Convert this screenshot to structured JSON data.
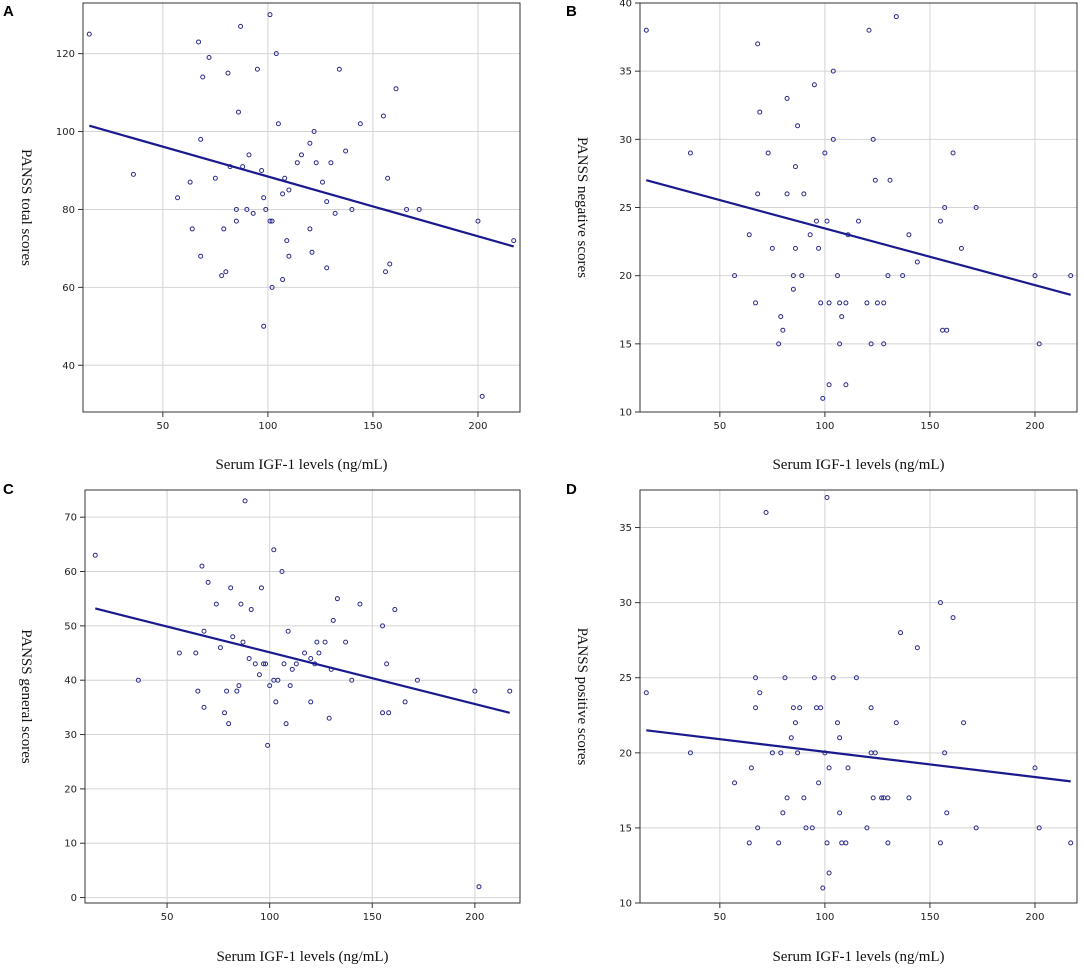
{
  "colors": {
    "points": "#2b2b8c",
    "fit_line": "#1a1a8e",
    "grid": "#d4d4d4",
    "frame": "#333333"
  },
  "chart_data": [
    {
      "panel": "A",
      "type": "scatter",
      "xlabel": "Serum IGF-1 levels (ng/mL)",
      "ylabel": "PANSS total scores",
      "xlim": [
        12,
        220
      ],
      "ylim": [
        28,
        133
      ],
      "xticks": [
        50,
        100,
        150,
        200
      ],
      "yticks": [
        40,
        60,
        80,
        100,
        120
      ],
      "grid": true,
      "fit_line": [
        [
          15,
          101.5
        ],
        [
          217,
          70.5
        ]
      ],
      "points": [
        [
          15,
          125
        ],
        [
          36,
          89
        ],
        [
          57,
          83
        ],
        [
          63,
          87
        ],
        [
          64,
          75
        ],
        [
          67,
          123
        ],
        [
          68,
          98
        ],
        [
          68,
          68
        ],
        [
          69,
          114
        ],
        [
          72,
          119
        ],
        [
          75,
          88
        ],
        [
          78,
          63
        ],
        [
          79,
          75
        ],
        [
          80,
          64
        ],
        [
          81,
          115
        ],
        [
          82,
          91
        ],
        [
          85,
          80
        ],
        [
          85,
          77
        ],
        [
          86,
          105
        ],
        [
          87,
          127
        ],
        [
          88,
          91
        ],
        [
          90,
          80
        ],
        [
          91,
          94
        ],
        [
          93,
          79
        ],
        [
          95,
          116
        ],
        [
          97,
          90
        ],
        [
          98,
          83
        ],
        [
          98,
          50
        ],
        [
          99,
          80
        ],
        [
          101,
          130
        ],
        [
          101,
          77
        ],
        [
          102,
          60
        ],
        [
          102,
          77
        ],
        [
          104,
          120
        ],
        [
          105,
          102
        ],
        [
          107,
          62
        ],
        [
          107,
          84
        ],
        [
          108,
          88
        ],
        [
          109,
          72
        ],
        [
          110,
          85
        ],
        [
          110,
          68
        ],
        [
          114,
          92
        ],
        [
          116,
          94
        ],
        [
          120,
          75
        ],
        [
          120,
          97
        ],
        [
          121,
          69
        ],
        [
          122,
          100
        ],
        [
          123,
          92
        ],
        [
          126,
          87
        ],
        [
          128,
          82
        ],
        [
          128,
          65
        ],
        [
          130,
          92
        ],
        [
          132,
          79
        ],
        [
          134,
          116
        ],
        [
          137,
          95
        ],
        [
          140,
          80
        ],
        [
          144,
          102
        ],
        [
          155,
          104
        ],
        [
          156,
          64
        ],
        [
          157,
          88
        ],
        [
          158,
          66
        ],
        [
          161,
          111
        ],
        [
          166,
          80
        ],
        [
          172,
          80
        ],
        [
          200,
          77
        ],
        [
          202,
          32
        ],
        [
          217,
          72
        ]
      ]
    },
    {
      "panel": "B",
      "type": "scatter",
      "xlabel": "Serum IGF-1 levels (ng/mL)",
      "ylabel": "PANSS negative scores",
      "xlim": [
        12,
        220
      ],
      "ylim": [
        10,
        40
      ],
      "xticks": [
        50,
        100,
        150,
        200
      ],
      "yticks": [
        10,
        15,
        20,
        25,
        30,
        35,
        40
      ],
      "grid": true,
      "fit_line": [
        [
          15,
          27
        ],
        [
          217,
          18.6
        ]
      ],
      "points": [
        [
          15,
          38
        ],
        [
          36,
          29
        ],
        [
          57,
          20
        ],
        [
          64,
          23
        ],
        [
          67,
          18
        ],
        [
          68,
          37
        ],
        [
          68,
          26
        ],
        [
          69,
          32
        ],
        [
          73,
          29
        ],
        [
          75,
          22
        ],
        [
          78,
          15
        ],
        [
          79,
          17
        ],
        [
          80,
          16
        ],
        [
          82,
          26
        ],
        [
          82,
          33
        ],
        [
          85,
          20
        ],
        [
          85,
          19
        ],
        [
          86,
          22
        ],
        [
          86,
          28
        ],
        [
          87,
          31
        ],
        [
          89,
          20
        ],
        [
          90,
          26
        ],
        [
          93,
          23
        ],
        [
          95,
          34
        ],
        [
          96,
          24
        ],
        [
          97,
          22
        ],
        [
          98,
          18
        ],
        [
          99,
          11
        ],
        [
          100,
          29
        ],
        [
          101,
          24
        ],
        [
          102,
          18
        ],
        [
          102,
          12
        ],
        [
          104,
          30
        ],
        [
          104,
          35
        ],
        [
          106,
          20
        ],
        [
          107,
          18
        ],
        [
          107,
          15
        ],
        [
          108,
          17
        ],
        [
          110,
          12
        ],
        [
          110,
          18
        ],
        [
          111,
          23
        ],
        [
          116,
          24
        ],
        [
          120,
          18
        ],
        [
          121,
          38
        ],
        [
          122,
          15
        ],
        [
          123,
          30
        ],
        [
          124,
          27
        ],
        [
          125,
          18
        ],
        [
          128,
          18
        ],
        [
          128,
          15
        ],
        [
          130,
          20
        ],
        [
          131,
          27
        ],
        [
          134,
          39
        ],
        [
          137,
          20
        ],
        [
          140,
          23
        ],
        [
          144,
          21
        ],
        [
          155,
          24
        ],
        [
          156,
          16
        ],
        [
          157,
          25
        ],
        [
          158,
          16
        ],
        [
          161,
          29
        ],
        [
          165,
          22
        ],
        [
          172,
          25
        ],
        [
          200,
          20
        ],
        [
          202,
          15
        ],
        [
          217,
          20
        ]
      ]
    },
    {
      "panel": "C",
      "type": "scatter",
      "xlabel": "Serum IGF-1 levels (ng/mL)",
      "ylabel": "PANSS general scores",
      "xlim": [
        10,
        222
      ],
      "ylim": [
        -1,
        75
      ],
      "xticks": [
        50,
        100,
        150,
        200
      ],
      "yticks": [
        0,
        10,
        20,
        30,
        40,
        50,
        60,
        70
      ],
      "grid": true,
      "fit_line": [
        [
          15,
          53.2
        ],
        [
          217,
          34
        ]
      ],
      "points": [
        [
          15,
          63
        ],
        [
          36,
          40
        ],
        [
          56,
          45
        ],
        [
          64,
          45
        ],
        [
          65,
          38
        ],
        [
          67,
          61
        ],
        [
          68,
          49
        ],
        [
          68,
          35
        ],
        [
          70,
          58
        ],
        [
          74,
          54
        ],
        [
          76,
          46
        ],
        [
          78,
          34
        ],
        [
          79,
          38
        ],
        [
          80,
          32
        ],
        [
          81,
          57
        ],
        [
          82,
          48
        ],
        [
          84,
          38
        ],
        [
          85,
          39
        ],
        [
          86,
          54
        ],
        [
          87,
          47
        ],
        [
          88,
          73
        ],
        [
          90,
          44
        ],
        [
          91,
          53
        ],
        [
          93,
          43
        ],
        [
          95,
          41
        ],
        [
          96,
          57
        ],
        [
          97,
          43
        ],
        [
          98,
          43
        ],
        [
          99,
          28
        ],
        [
          100,
          39
        ],
        [
          102,
          64
        ],
        [
          102,
          40
        ],
        [
          103,
          36
        ],
        [
          104,
          40
        ],
        [
          106,
          60
        ],
        [
          107,
          43
        ],
        [
          108,
          32
        ],
        [
          109,
          49
        ],
        [
          110,
          39
        ],
        [
          111,
          42
        ],
        [
          113,
          43
        ],
        [
          117,
          45
        ],
        [
          120,
          36
        ],
        [
          120,
          44
        ],
        [
          122,
          43
        ],
        [
          123,
          47
        ],
        [
          124,
          45
        ],
        [
          127,
          47
        ],
        [
          129,
          33
        ],
        [
          130,
          42
        ],
        [
          131,
          51
        ],
        [
          133,
          55
        ],
        [
          137,
          47
        ],
        [
          140,
          40
        ],
        [
          144,
          54
        ],
        [
          155,
          50
        ],
        [
          155,
          34
        ],
        [
          157,
          43
        ],
        [
          158,
          34
        ],
        [
          161,
          53
        ],
        [
          166,
          36
        ],
        [
          172,
          40
        ],
        [
          200,
          38
        ],
        [
          202,
          2
        ],
        [
          217,
          38
        ]
      ]
    },
    {
      "panel": "D",
      "type": "scatter",
      "xlabel": "Serum IGF-1 levels (ng/mL)",
      "ylabel": "PANSS positive scores",
      "xlim": [
        12,
        220
      ],
      "ylim": [
        10,
        37.5
      ],
      "xticks": [
        50,
        100,
        150,
        200
      ],
      "yticks": [
        10,
        15,
        20,
        25,
        30,
        35
      ],
      "grid": true,
      "fit_line": [
        [
          15,
          21.5
        ],
        [
          217,
          18.1
        ]
      ],
      "points": [
        [
          15,
          24
        ],
        [
          36,
          20
        ],
        [
          57,
          18
        ],
        [
          64,
          14
        ],
        [
          65,
          19
        ],
        [
          67,
          25
        ],
        [
          67,
          23
        ],
        [
          68,
          15
        ],
        [
          69,
          24
        ],
        [
          72,
          36
        ],
        [
          75,
          20
        ],
        [
          78,
          14
        ],
        [
          79,
          20
        ],
        [
          80,
          16
        ],
        [
          81,
          25
        ],
        [
          82,
          17
        ],
        [
          84,
          21
        ],
        [
          85,
          23
        ],
        [
          86,
          22
        ],
        [
          87,
          20
        ],
        [
          88,
          23
        ],
        [
          90,
          17
        ],
        [
          91,
          15
        ],
        [
          94,
          15
        ],
        [
          95,
          25
        ],
        [
          96,
          23
        ],
        [
          97,
          18
        ],
        [
          98,
          23
        ],
        [
          99,
          11
        ],
        [
          100,
          20
        ],
        [
          101,
          37
        ],
        [
          101,
          14
        ],
        [
          102,
          12
        ],
        [
          102,
          19
        ],
        [
          104,
          25
        ],
        [
          106,
          22
        ],
        [
          107,
          16
        ],
        [
          107,
          21
        ],
        [
          108,
          14
        ],
        [
          110,
          14
        ],
        [
          111,
          19
        ],
        [
          115,
          25
        ],
        [
          120,
          15
        ],
        [
          122,
          20
        ],
        [
          122,
          23
        ],
        [
          123,
          17
        ],
        [
          124,
          20
        ],
        [
          127,
          17
        ],
        [
          128,
          17
        ],
        [
          130,
          17
        ],
        [
          130,
          14
        ],
        [
          134,
          22
        ],
        [
          136,
          28
        ],
        [
          140,
          17
        ],
        [
          144,
          27
        ],
        [
          155,
          30
        ],
        [
          155,
          14
        ],
        [
          157,
          20
        ],
        [
          158,
          16
        ],
        [
          161,
          29
        ],
        [
          166,
          22
        ],
        [
          172,
          15
        ],
        [
          200,
          19
        ],
        [
          202,
          15
        ],
        [
          217,
          14
        ]
      ]
    }
  ]
}
